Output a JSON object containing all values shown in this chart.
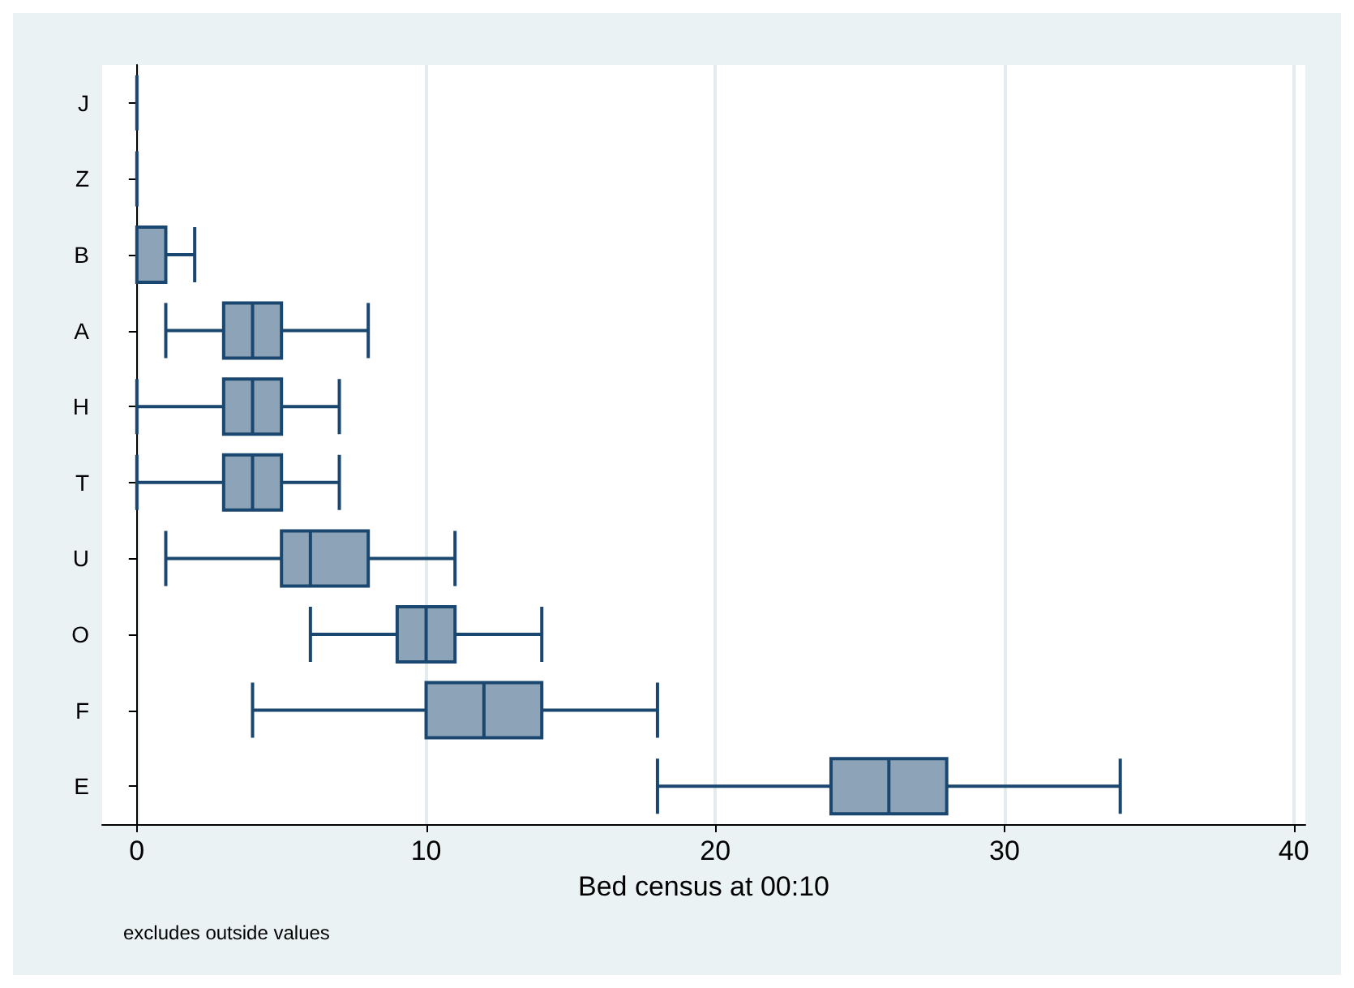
{
  "chart_data": {
    "type": "box",
    "orientation": "horizontal",
    "xlabel": "Bed census at 00:10",
    "annotations": [
      "excludes outside values"
    ],
    "categories": [
      "J",
      "Z",
      "B",
      "A",
      "H",
      "T",
      "U",
      "O",
      "F",
      "E"
    ],
    "color": "#1a476f",
    "boxes": [
      {
        "low": 0,
        "q1": 0,
        "median": 0,
        "q3": 0,
        "high": 0
      },
      {
        "low": 0,
        "q1": 0,
        "median": 0,
        "q3": 0,
        "high": 0
      },
      {
        "low": 0,
        "q1": 0,
        "median": 0,
        "q3": 1,
        "high": 2
      },
      {
        "low": 1,
        "q1": 3,
        "median": 4,
        "q3": 5,
        "high": 8
      },
      {
        "low": 0,
        "q1": 3,
        "median": 4,
        "q3": 5,
        "high": 7
      },
      {
        "low": 0,
        "q1": 3,
        "median": 4,
        "q3": 5,
        "high": 7
      },
      {
        "low": 1,
        "q1": 5,
        "median": 6,
        "q3": 8,
        "high": 11
      },
      {
        "low": 6,
        "q1": 9,
        "median": 10,
        "q3": 11,
        "high": 14
      },
      {
        "low": 4,
        "q1": 10,
        "median": 12,
        "q3": 14,
        "high": 18
      },
      {
        "low": 18,
        "q1": 24,
        "median": 26,
        "q3": 28,
        "high": 34
      }
    ],
    "xlim": [
      -1.2,
      40.4
    ],
    "xticks": [
      0,
      10,
      20,
      30,
      40
    ],
    "grid": "x"
  }
}
